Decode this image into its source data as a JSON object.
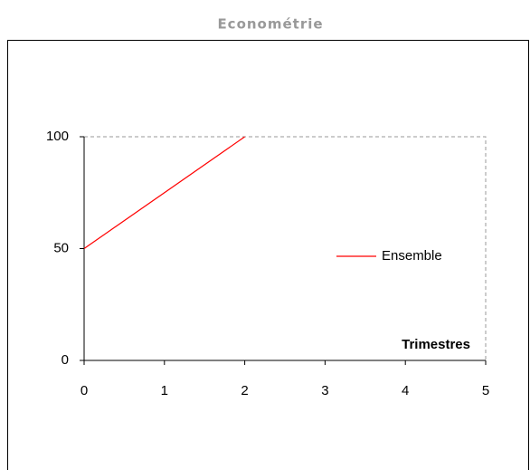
{
  "chart_data": {
    "type": "line",
    "title": "Econométrie",
    "x_label": "Trimestres",
    "x": [
      0,
      2
    ],
    "series": [
      {
        "name": "Ensemble",
        "color": "#ff0000",
        "values": [
          50,
          100
        ]
      }
    ],
    "xlim": [
      0,
      5
    ],
    "xticks": [
      0,
      1,
      2,
      3,
      4,
      5
    ],
    "ylim": [
      0,
      100
    ],
    "yticks": [
      0,
      50,
      100
    ],
    "legend": "right"
  }
}
